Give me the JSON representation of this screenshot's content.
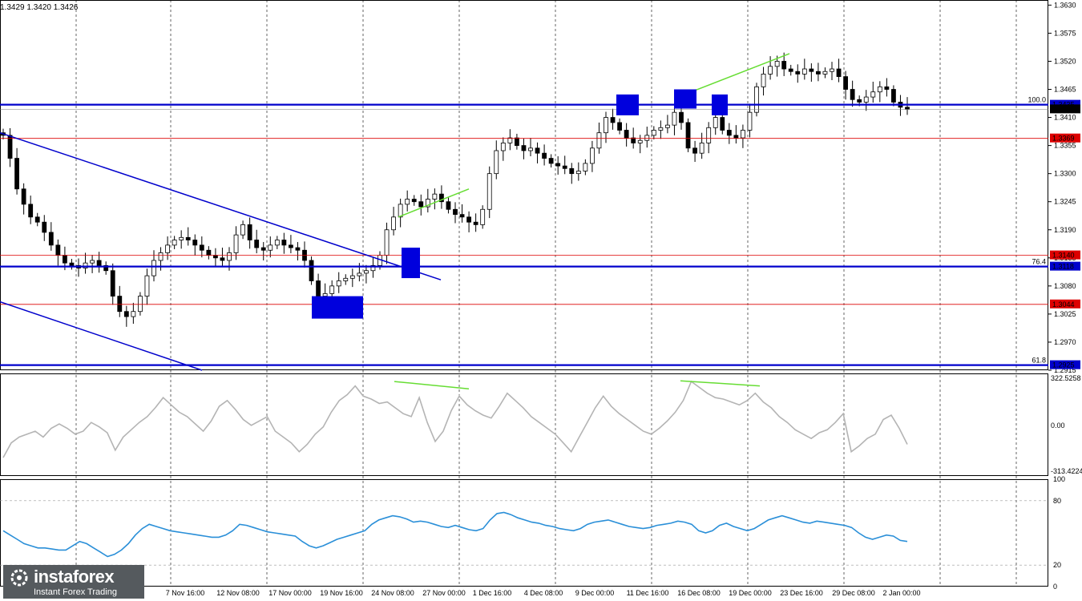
{
  "header": {
    "ohlc_text": "1.3429 1.3420 1.3426"
  },
  "watermark": {
    "brand": "instaforex",
    "tagline": "Instant Forex Trading"
  },
  "colors": {
    "candle": "#000000",
    "level_blue": "#0000cc",
    "level_red": "#dd0000",
    "trendline": "#0000cc",
    "divergence": "#66dd33",
    "cci": "#b4b4b4",
    "rsi": "#2a8fd8",
    "box": "#0000dd"
  },
  "chart_data": [
    {
      "type": "candlestick",
      "panel": "price",
      "ylim": [
        1.2915,
        1.364
      ],
      "y_ticks": [
        "1.3630",
        "1.3575",
        "1.3520",
        "1.3465",
        "1.3410",
        "1.3355",
        "1.3300",
        "1.3245",
        "1.3190",
        "1.3135",
        "1.3080",
        "1.3025",
        "1.2970",
        "1.2915"
      ],
      "x_ticks": [
        "7 Nov 16:00",
        "12 Nov 08:00",
        "17 Nov 00:00",
        "19 Nov 16:00",
        "24 Nov 08:00",
        "27 Nov 00:00",
        "1 Dec 16:00",
        "4 Dec 08:00",
        "9 Dec 00:00",
        "11 Dec 16:00",
        "16 Dec 08:00",
        "19 Dec 00:00",
        "23 Dec 16:00",
        "29 Dec 08:00",
        "2 Jan 00:00"
      ],
      "close_path": [
        1.3375,
        1.333,
        1.327,
        1.324,
        1.3215,
        1.3205,
        1.3185,
        1.316,
        1.314,
        1.3125,
        1.312,
        1.3115,
        1.3125,
        1.313,
        1.312,
        1.311,
        1.306,
        1.303,
        1.302,
        1.303,
        1.306,
        1.31,
        1.313,
        1.3145,
        1.316,
        1.317,
        1.3175,
        1.317,
        1.316,
        1.315,
        1.314,
        1.3135,
        1.313,
        1.3145,
        1.318,
        1.32,
        1.317,
        1.3155,
        1.315,
        1.316,
        1.317,
        1.316,
        1.3155,
        1.315,
        1.313,
        1.309,
        1.306,
        1.3065,
        1.308,
        1.309,
        1.3095,
        1.31,
        1.3105,
        1.311,
        1.312,
        1.314,
        1.319,
        1.3215,
        1.324,
        1.325,
        1.3245,
        1.3235,
        1.325,
        1.326,
        1.3245,
        1.323,
        1.322,
        1.3215,
        1.3205,
        1.32,
        1.323,
        1.33,
        1.3345,
        1.336,
        1.337,
        1.3355,
        1.3345,
        1.335,
        1.334,
        1.333,
        1.332,
        1.3315,
        1.331,
        1.33,
        1.3305,
        1.332,
        1.335,
        1.338,
        1.341,
        1.34,
        1.3385,
        1.337,
        1.336,
        1.3365,
        1.3375,
        1.3385,
        1.339,
        1.3395,
        1.342,
        1.34,
        1.335,
        1.334,
        1.336,
        1.339,
        1.341,
        1.3385,
        1.3375,
        1.337,
        1.3385,
        1.342,
        1.347,
        1.3495,
        1.351,
        1.352,
        1.3505,
        1.35,
        1.3495,
        1.3505,
        1.35,
        1.3495,
        1.35,
        1.3505,
        1.349,
        1.3465,
        1.3445,
        1.344,
        1.345,
        1.346,
        1.347,
        1.3465,
        1.344,
        1.343,
        1.3426
      ],
      "levels": [
        {
          "value": 1.3435,
          "label": "1.3435",
          "fib": "100.0",
          "color": "blue"
        },
        {
          "value": 1.3426,
          "label": "1.3426",
          "fib": "",
          "color": "current"
        },
        {
          "value": 1.3369,
          "label": "1.3369",
          "fib": "",
          "color": "red"
        },
        {
          "value": 1.314,
          "label": "1.3140",
          "fib": "",
          "color": "red"
        },
        {
          "value": 1.3118,
          "label": "1.3118",
          "fib": "76.4",
          "color": "blue"
        },
        {
          "value": 1.3044,
          "label": "1.3044",
          "fib": "",
          "color": "red"
        },
        {
          "value": 1.2925,
          "label": "1.2925",
          "fib": "61.8",
          "color": "blue"
        }
      ]
    },
    {
      "type": "line",
      "panel": "CCI",
      "ylim": [
        -313.4224,
        322.5258
      ],
      "y_ticks": [
        "322.5258",
        "0.00",
        "-313.4224"
      ],
      "values": [
        -220,
        -120,
        -80,
        -60,
        -40,
        -80,
        -20,
        10,
        -20,
        -60,
        -40,
        20,
        -10,
        -50,
        -170,
        -80,
        -30,
        20,
        60,
        120,
        190,
        140,
        90,
        60,
        10,
        -40,
        30,
        130,
        170,
        110,
        40,
        0,
        30,
        60,
        -40,
        -80,
        -120,
        -180,
        -130,
        -60,
        -10,
        90,
        170,
        210,
        270,
        200,
        180,
        150,
        160,
        120,
        80,
        60,
        190,
        20,
        -110,
        -40,
        100,
        200,
        140,
        100,
        70,
        50,
        130,
        220,
        170,
        120,
        60,
        20,
        -20,
        -60,
        -120,
        -180,
        -80,
        20,
        120,
        200,
        130,
        80,
        40,
        0,
        -40,
        -60,
        -20,
        30,
        90,
        170,
        300,
        260,
        220,
        190,
        180,
        160,
        140,
        170,
        220,
        160,
        120,
        60,
        20,
        -30,
        -60,
        -90,
        -50,
        -30,
        20,
        80,
        -180,
        -140,
        -90,
        -60,
        40,
        70,
        -20,
        -130
      ]
    },
    {
      "type": "line",
      "panel": "RSI",
      "ylim": [
        0,
        100
      ],
      "y_ticks": [
        "100",
        "80",
        "20",
        "0"
      ],
      "values": [
        52,
        48,
        44,
        40,
        38,
        36,
        36,
        35,
        34,
        34,
        38,
        42,
        40,
        36,
        32,
        28,
        30,
        34,
        40,
        48,
        54,
        58,
        56,
        54,
        52,
        51,
        50,
        49,
        48,
        47,
        46,
        46,
        48,
        52,
        58,
        57,
        55,
        53,
        51,
        50,
        49,
        48,
        47,
        42,
        38,
        36,
        38,
        41,
        44,
        46,
        48,
        50,
        52,
        58,
        62,
        64,
        66,
        65,
        63,
        60,
        61,
        60,
        58,
        56,
        55,
        57,
        55,
        53,
        52,
        54,
        62,
        68,
        69,
        67,
        64,
        62,
        60,
        59,
        57,
        56,
        54,
        53,
        52,
        54,
        58,
        60,
        61,
        62,
        60,
        58,
        56,
        55,
        54,
        55,
        57,
        58,
        59,
        61,
        60,
        58,
        52,
        50,
        52,
        57,
        59,
        56,
        54,
        52,
        54,
        58,
        62,
        64,
        66,
        64,
        62,
        60,
        59,
        61,
        60,
        59,
        58,
        57,
        55,
        50,
        46,
        44,
        46,
        48,
        47,
        43,
        42
      ]
    }
  ]
}
